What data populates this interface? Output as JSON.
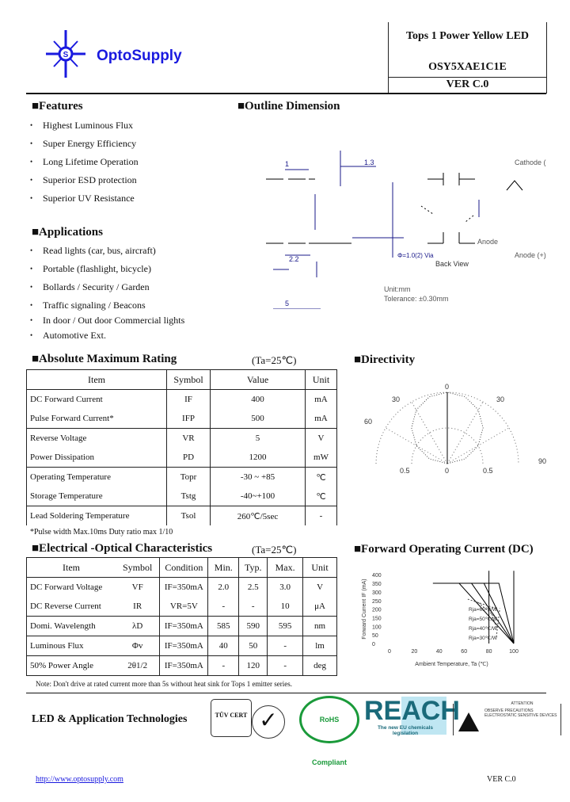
{
  "header": {
    "brand": "OptoSupply",
    "title": "Tops 1 Power Yellow LED",
    "part_number": "OSY5XAE1C1E",
    "version": "VER C.0"
  },
  "features": {
    "heading": "■Features",
    "items": [
      "Highest Luminous Flux",
      "Super Energy Efficiency",
      "Long Lifetime Operation",
      "Superior ESD protection",
      "Superior UV Resistance"
    ]
  },
  "applications": {
    "heading": "■Applications",
    "items": [
      "Read lights (car, bus, aircraft)",
      "Portable (flashlight, bicycle)",
      "Bollards / Security / Garden",
      "Traffic signaling / Beacons",
      "In door / Out door Commercial lights",
      "Automotive Ext."
    ]
  },
  "outline": {
    "heading": "■Outline Dimension",
    "labels": {
      "cathode": "Cathode (-)",
      "anode": "Anode (+)",
      "anode_pin": "Anode",
      "back_view": "Back View",
      "unit": "Unit:mm",
      "tolerance": "Tolerance: ±0.30mm",
      "dim_1": "1",
      "dim_13": "1.3",
      "dim_22": "2.2",
      "dim_5": "5",
      "dim_d": "Φ=1.0(2) Via"
    }
  },
  "abs_max": {
    "heading": "■Absolute Maximum Rating",
    "condition": "(Ta=25℃)",
    "columns": [
      "Item",
      "Symbol",
      "Value",
      "Unit"
    ],
    "rows": [
      [
        "DC Forward Current",
        "IF",
        "400",
        "mA"
      ],
      [
        "Pulse Forward Current*",
        "IFP",
        "500",
        "mA"
      ],
      [
        "Reverse Voltage",
        "VR",
        "5",
        "V"
      ],
      [
        "Power Dissipation",
        "PD",
        "1200",
        "mW"
      ],
      [
        "Operating Temperature",
        "Topr",
        "-30 ~ +85",
        "℃"
      ],
      [
        "Storage Temperature",
        "Tstg",
        "-40~+100",
        "℃"
      ],
      [
        "Lead Soldering Temperature",
        "Tsol",
        "260℃/5sec",
        "-"
      ]
    ],
    "footnote": "*Pulse width Max.10ms   Duty ratio max 1/10"
  },
  "eo": {
    "heading": "■Electrical -Optical Characteristics",
    "condition": "(Ta=25℃)",
    "columns": [
      "Item",
      "Symbol",
      "Condition",
      "Min.",
      "Typ.",
      "Max.",
      "Unit"
    ],
    "rows": [
      [
        "DC Forward Voltage",
        "VF",
        "IF=350mA",
        "2.0",
        "2.5",
        "3.0",
        "V"
      ],
      [
        "DC Reverse Current",
        "IR",
        "VR=5V",
        "-",
        "-",
        "10",
        "μA"
      ],
      [
        "Domi. Wavelength",
        "λD",
        "IF=350mA",
        "585",
        "590",
        "595",
        "nm"
      ],
      [
        "Luminous Flux",
        "Φv",
        "IF=350mA",
        "40",
        "50",
        "-",
        "lm"
      ],
      [
        "50% Power Angle",
        "2θ1/2",
        "IF=350mA",
        "-",
        "120",
        "-",
        "deg"
      ]
    ],
    "note": "Note: Don't drive at rated current more than 5s without heat sink for Tops 1 emitter series."
  },
  "chart_data": [
    {
      "type": "line",
      "title": "■Directivity",
      "polar": true,
      "angle_labels": [
        "0",
        "30",
        "30",
        "60",
        "90"
      ],
      "radial_labels": [
        "0.5",
        "0",
        "0.5"
      ],
      "series": [
        {
          "angles_deg": [
            -90,
            -75,
            -60,
            -45,
            -30,
            -15,
            0,
            15,
            30,
            45,
            60,
            75,
            90
          ],
          "values": [
            0,
            0.26,
            0.5,
            0.71,
            0.87,
            0.97,
            1,
            0.97,
            0.87,
            0.71,
            0.5,
            0.26,
            0
          ]
        }
      ]
    },
    {
      "type": "line",
      "title": "■Forward Operating Current (DC)",
      "xlabel": "Ambient Temperature, Ta (℃)",
      "ylabel": "Forward Current IF (mA)",
      "xlim": [
        0,
        100
      ],
      "ylim": [
        0,
        400
      ],
      "xticks": [
        0,
        20,
        40,
        60,
        80,
        100
      ],
      "yticks": [
        0,
        50,
        100,
        150,
        200,
        250,
        300,
        350,
        400
      ],
      "series": [
        {
          "name": "Rja=60℃/W",
          "x": [
            35,
            56,
            100
          ],
          "y": [
            350,
            350,
            0
          ]
        },
        {
          "name": "Rja=50℃/W",
          "x": [
            35,
            66,
            100
          ],
          "y": [
            350,
            350,
            0
          ]
        },
        {
          "name": "Rja=40℃/W",
          "x": [
            35,
            76,
            100
          ],
          "y": [
            350,
            350,
            0
          ]
        },
        {
          "name": "Rja=30℃/W",
          "x": [
            35,
            88,
            100
          ],
          "y": [
            350,
            350,
            0
          ]
        }
      ],
      "vlines": [
        80,
        100
      ]
    }
  ],
  "footer": {
    "tagline": "LED & Application Technologies",
    "url": "http://www.optosupply.com",
    "version": "VER C.0",
    "logo_tuv": "TÜV CERT",
    "logo_rohs": "RoHS Compliant",
    "logo_reach": "REACH",
    "logo_reach_sub": "The new EU chemicals legislation",
    "esd_title": "ATTENTION",
    "esd_text": "OBSERVE PRECAUTIONS ELECTROSTATIC SENSITIVE DEVICES"
  }
}
